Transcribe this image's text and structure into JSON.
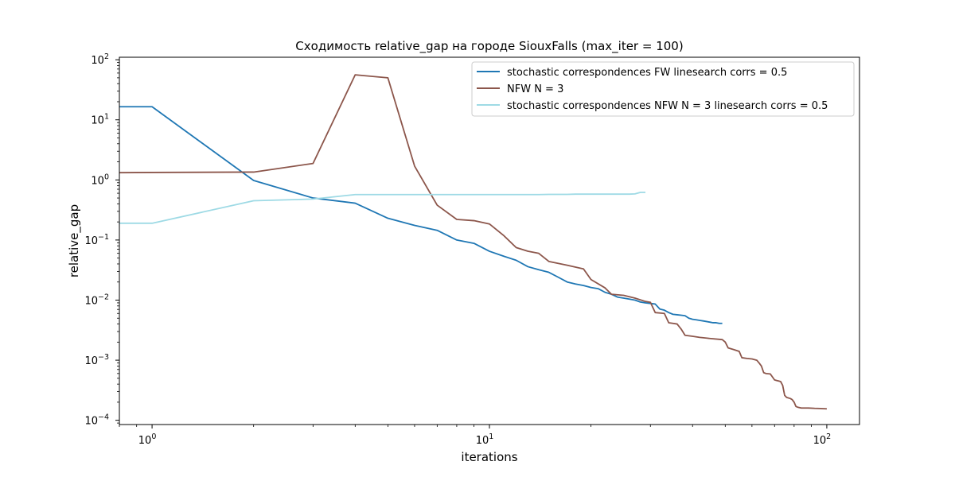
{
  "chart_data": {
    "type": "line",
    "title": "Сходимость relative_gap на городе SiouxFalls  (max_iter = 100)",
    "xlabel": "iterations",
    "ylabel": "relative_gap",
    "xscale": "log",
    "yscale": "log",
    "xlim": [
      0.8,
      125
    ],
    "ylim": [
      8.5e-05,
      110
    ],
    "grid": false,
    "legend_position": "top-right",
    "x_ticks": [
      {
        "value": 1,
        "base": "10",
        "exp": "0"
      },
      {
        "value": 10,
        "base": "10",
        "exp": "1"
      },
      {
        "value": 100,
        "base": "10",
        "exp": "2"
      }
    ],
    "y_ticks": [
      {
        "value": 0.0001,
        "base": "10",
        "exp": "−4"
      },
      {
        "value": 0.001,
        "base": "10",
        "exp": "−3"
      },
      {
        "value": 0.01,
        "base": "10",
        "exp": "−2"
      },
      {
        "value": 0.1,
        "base": "10",
        "exp": "−1"
      },
      {
        "value": 1,
        "base": "10",
        "exp": "0"
      },
      {
        "value": 10,
        "base": "10",
        "exp": "1"
      },
      {
        "value": 100,
        "base": "10",
        "exp": "2"
      }
    ],
    "series": [
      {
        "name": "stochastic correspondences FW linesearch corrs = 0.5",
        "color": "#1f77b4",
        "x": [
          0.8,
          1,
          2,
          3,
          4,
          5,
          6,
          7,
          8,
          9,
          10,
          11,
          12,
          13,
          14,
          15,
          16,
          17,
          18,
          19,
          20,
          21,
          22,
          23,
          24,
          25,
          26,
          27,
          28,
          29,
          30,
          31,
          32,
          33,
          34,
          35,
          36,
          37,
          38,
          39,
          40,
          41,
          42,
          43,
          44,
          45,
          46,
          47,
          48,
          49
        ],
        "y": [
          16.5,
          16.5,
          0.98,
          0.5,
          0.41,
          0.23,
          0.175,
          0.145,
          0.1,
          0.088,
          0.065,
          0.054,
          0.046,
          0.036,
          0.032,
          0.029,
          0.024,
          0.02,
          0.0185,
          0.0175,
          0.0162,
          0.0155,
          0.0135,
          0.0125,
          0.0112,
          0.0108,
          0.0104,
          0.01,
          0.0093,
          0.009,
          0.0088,
          0.0086,
          0.0071,
          0.0068,
          0.0062,
          0.0058,
          0.0057,
          0.0056,
          0.0055,
          0.005,
          0.0048,
          0.0047,
          0.0046,
          0.0045,
          0.0044,
          0.0043,
          0.0042,
          0.0042,
          0.0041,
          0.0041
        ]
      },
      {
        "name": "NFW N = 3",
        "color": "#8c564b",
        "x": [
          0.8,
          1,
          2,
          3,
          4,
          5,
          6,
          7,
          8,
          9,
          10,
          11,
          12,
          13,
          14,
          15,
          17,
          19,
          20,
          22,
          23,
          25,
          27,
          29,
          30,
          31,
          33,
          34,
          35,
          36,
          37,
          38,
          40,
          42,
          45,
          49,
          50,
          51,
          53,
          55,
          56,
          58,
          60,
          62,
          63,
          64,
          65,
          66,
          68,
          70,
          71,
          72,
          73,
          74,
          75,
          76,
          78,
          79,
          80,
          81,
          82,
          84,
          88,
          92,
          96,
          100
        ],
        "y": [
          1.32,
          1.33,
          1.35,
          1.88,
          56,
          50,
          1.7,
          0.38,
          0.22,
          0.21,
          0.185,
          0.12,
          0.075,
          0.065,
          0.06,
          0.044,
          0.038,
          0.033,
          0.022,
          0.016,
          0.0125,
          0.012,
          0.0108,
          0.0095,
          0.0092,
          0.0062,
          0.006,
          0.0042,
          0.0041,
          0.004,
          0.0033,
          0.0026,
          0.0025,
          0.0024,
          0.0023,
          0.0022,
          0.002,
          0.0016,
          0.0015,
          0.0014,
          0.0011,
          0.00107,
          0.00105,
          0.001,
          0.0009,
          0.0008,
          0.00062,
          0.0006,
          0.00059,
          0.00047,
          0.00046,
          0.00045,
          0.00044,
          0.00038,
          0.00026,
          0.00024,
          0.00023,
          0.00022,
          0.0002,
          0.00017,
          0.000165,
          0.00016,
          0.00016,
          0.000158,
          0.000157,
          0.000155
        ]
      },
      {
        "name": "stochastic correspondences NFW N = 3 linesearch corrs = 0.5",
        "color": "#9edae5",
        "x": [
          0.8,
          1,
          2,
          3,
          4,
          5,
          6,
          7,
          8,
          9,
          10,
          11,
          12,
          13,
          14,
          15,
          16,
          17,
          18,
          19,
          20,
          21,
          22,
          23,
          24,
          25,
          26,
          27,
          28,
          29
        ],
        "y": [
          0.19,
          0.19,
          0.45,
          0.48,
          0.57,
          0.57,
          0.57,
          0.57,
          0.57,
          0.57,
          0.57,
          0.57,
          0.57,
          0.57,
          0.57,
          0.575,
          0.575,
          0.575,
          0.58,
          0.58,
          0.58,
          0.58,
          0.58,
          0.58,
          0.58,
          0.58,
          0.58,
          0.585,
          0.62,
          0.62
        ]
      }
    ]
  }
}
